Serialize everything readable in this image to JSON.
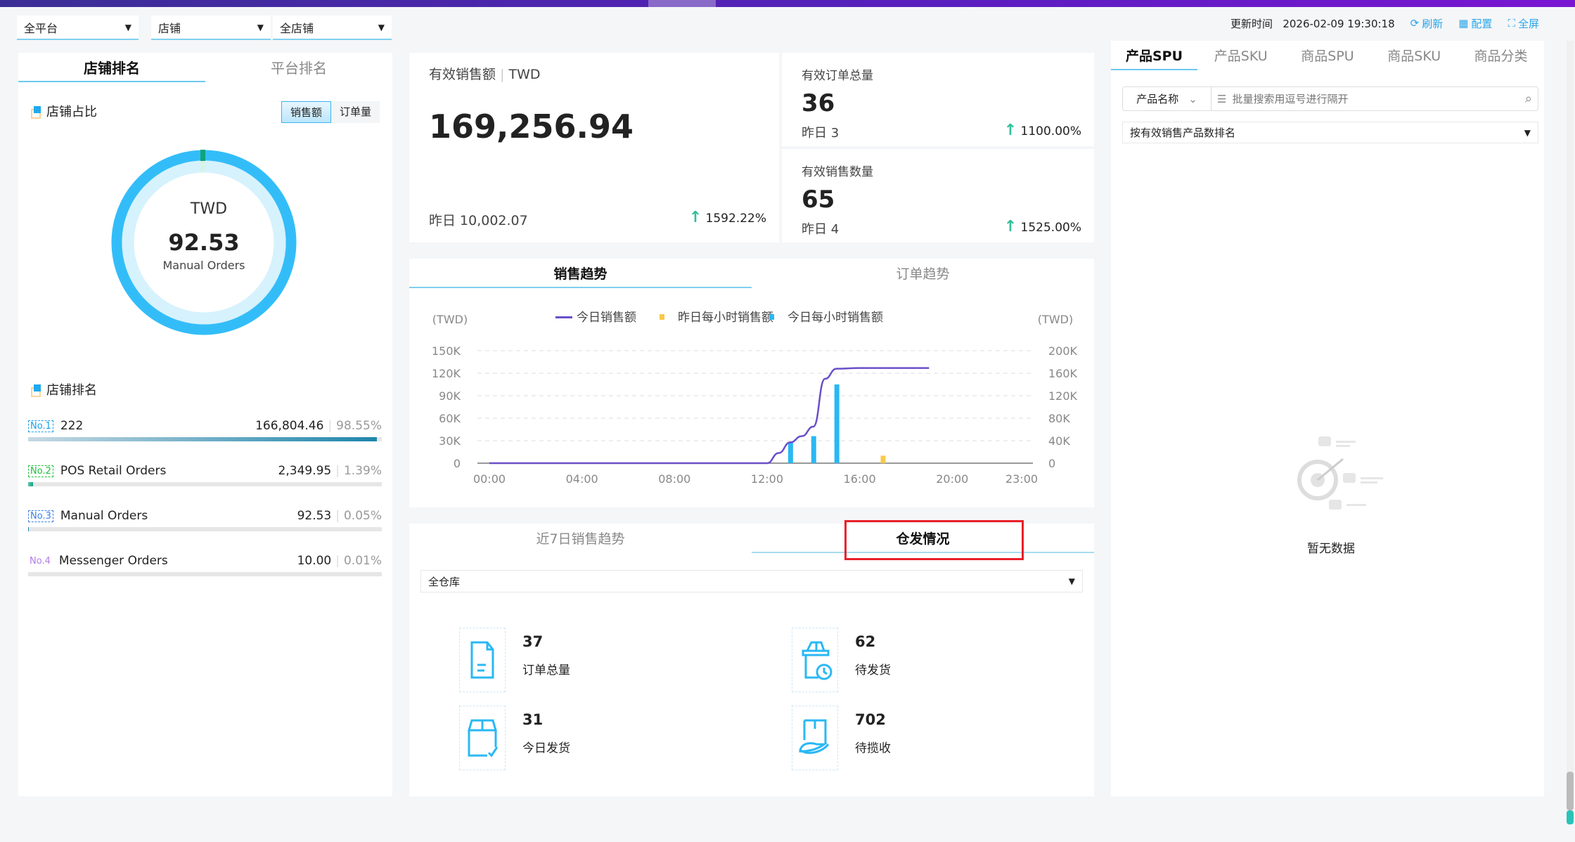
{
  "filters": {
    "platform": "全平台",
    "store_type": "店铺",
    "store": "全店铺"
  },
  "header": {
    "update_label": "更新时间",
    "update_time": "2026-02-09 19:30:18",
    "refresh": "刷新",
    "config": "配置",
    "fullscreen": "全屏"
  },
  "left": {
    "tabs": [
      {
        "label": "店铺排名",
        "active": true
      },
      {
        "label": "平台排名",
        "active": false
      }
    ],
    "share_title": "店铺占比",
    "toggle": [
      {
        "label": "销售额",
        "active": true
      },
      {
        "label": "订单量",
        "active": false
      }
    ],
    "donut": {
      "currency": "TWD",
      "value": "92.53",
      "name": "Manual Orders",
      "colors": [
        "#33bdf8",
        "#0ea47a"
      ]
    },
    "ranking_title": "店铺排名",
    "ranking": [
      {
        "badge": "No.1",
        "name": "222",
        "value": "166,804.46",
        "pct": "98.55%",
        "share": 98.55,
        "color": "#1ba0e8"
      },
      {
        "badge": "No.2",
        "name": "POS Retail Orders",
        "value": "2,349.95",
        "pct": "1.39%",
        "share": 1.39,
        "color": "#1ec23a"
      },
      {
        "badge": "No.3",
        "name": "Manual Orders",
        "value": "92.53",
        "pct": "0.05%",
        "share": 0.05,
        "color": "#3d7fe8"
      },
      {
        "badge": "No.4",
        "name": "Messenger Orders",
        "value": "10.00",
        "pct": "0.01%",
        "share": 0.01,
        "color": "#b47be8"
      }
    ]
  },
  "kpi": {
    "sales": {
      "label": "有效销售额",
      "unit": "TWD",
      "value": "169,256.94",
      "yesterday": "昨日 10,002.07",
      "change": "1592.22%"
    },
    "orders": {
      "label": "有效订单总量",
      "value": "36",
      "yesterday": "昨日 3",
      "change": "1100.00%"
    },
    "qty": {
      "label": "有效销售数量",
      "value": "65",
      "yesterday": "昨日 4",
      "change": "1525.00%"
    }
  },
  "trend_tabs": [
    {
      "label": "销售趋势",
      "active": true
    },
    {
      "label": "订单趋势",
      "active": false
    }
  ],
  "chart_data": {
    "type": "line+bar",
    "left_unit": "(TWD)",
    "right_unit": "(TWD)",
    "legend": [
      "今日销售额",
      "昨日每小时销售额",
      "今日每小时销售额"
    ],
    "legend_placement": "top",
    "colors": {
      "today_line": "#6a4fc8",
      "yesterday_bar": "#f8c94a",
      "today_bar": "#2ab8f4"
    },
    "x_ticks": [
      "00:00",
      "04:00",
      "08:00",
      "12:00",
      "16:00",
      "20:00",
      "23:00"
    ],
    "left_ticks": [
      "0",
      "30K",
      "60K",
      "90K",
      "120K",
      "150K"
    ],
    "left_range": [
      0,
      150000
    ],
    "right_ticks": [
      "0",
      "40K",
      "80K",
      "120K",
      "160K",
      "200K"
    ],
    "right_range": [
      0,
      200000
    ],
    "grid": true,
    "today_cumulative": {
      "axis": "right",
      "hours": [
        0,
        12,
        12.5,
        13,
        13.5,
        14,
        14.5,
        15,
        16,
        17,
        18,
        19
      ],
      "values": [
        0,
        0,
        18000,
        37000,
        48000,
        65000,
        150000,
        168000,
        169257,
        169257,
        169257,
        169257
      ]
    },
    "today_hourly": {
      "axis": "left",
      "hours": [
        13,
        14,
        15
      ],
      "values": [
        28000,
        36000,
        105000
      ]
    },
    "yesterday_hourly": {
      "axis": "left",
      "hours": [
        17
      ],
      "values": [
        10002
      ]
    }
  },
  "bottom_tabs": [
    {
      "label": "近7日销售趋势",
      "active": false
    },
    {
      "label": "仓发情况",
      "active": true
    }
  ],
  "warehouse": {
    "select": "全仓库",
    "items": [
      {
        "value": "37",
        "label": "订单总量",
        "icon": "document-icon"
      },
      {
        "value": "62",
        "label": "待发货",
        "icon": "box-clock-icon"
      },
      {
        "value": "31",
        "label": "今日发货",
        "icon": "box-check-icon"
      },
      {
        "value": "702",
        "label": "待揽收",
        "icon": "box-hand-icon"
      }
    ]
  },
  "right": {
    "tabs": [
      {
        "label": "产品SPU",
        "active": true
      },
      {
        "label": "产品SKU"
      },
      {
        "label": "商品SPU"
      },
      {
        "label": "商品SKU"
      },
      {
        "label": "商品分类"
      }
    ],
    "search_field": "产品名称",
    "search_placeholder": "批量搜索用逗号进行隔开",
    "sort": "按有效销售产品数排名",
    "empty": "暂无数据"
  }
}
